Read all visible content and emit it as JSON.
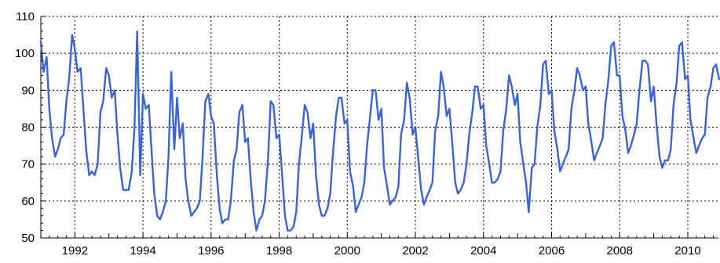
{
  "chart_data": {
    "type": "line",
    "title": "",
    "xlabel": "",
    "ylabel": "",
    "xlim": [
      1991.0,
      2010.9
    ],
    "ylim": [
      50,
      110
    ],
    "grid": true,
    "line_color": "#3a63d8",
    "x_ticks": [
      "1992",
      "1994",
      "1996",
      "1998",
      "2000",
      "2002",
      "2004",
      "2006",
      "2008",
      "2010"
    ],
    "y_ticks": [
      "50",
      "60",
      "70",
      "80",
      "90",
      "100",
      "110"
    ],
    "series": [
      {
        "x": [
          1991.0,
          1991.08,
          1991.17,
          1991.25,
          1991.33,
          1991.42,
          1991.5,
          1991.58,
          1991.67,
          1991.75,
          1991.83,
          1991.92,
          1992.0,
          1992.08,
          1992.17,
          1992.25,
          1992.33,
          1992.42,
          1992.5,
          1992.58,
          1992.67,
          1992.75,
          1992.83,
          1992.92,
          1993.0,
          1993.08,
          1993.17,
          1993.25,
          1993.33,
          1993.42,
          1993.5,
          1993.58,
          1993.67,
          1993.75,
          1993.83,
          1993.92,
          1994.0,
          1994.08,
          1994.17,
          1994.25,
          1994.33,
          1994.42,
          1994.5,
          1994.58,
          1994.67,
          1994.75,
          1994.83,
          1994.92,
          1995.0,
          1995.08,
          1995.17,
          1995.25,
          1995.33,
          1995.42,
          1995.5,
          1995.58,
          1995.67,
          1995.75,
          1995.83,
          1995.92,
          1996.0,
          1996.08,
          1996.17,
          1996.25,
          1996.33,
          1996.42,
          1996.5,
          1996.58,
          1996.67,
          1996.75,
          1996.83,
          1996.92,
          1997.0,
          1997.08,
          1997.17,
          1997.25,
          1997.33,
          1997.42,
          1997.5,
          1997.58,
          1997.67,
          1997.75,
          1997.83,
          1997.92,
          1998.0,
          1998.08,
          1998.17,
          1998.25,
          1998.33,
          1998.42,
          1998.5,
          1998.58,
          1998.67,
          1998.75,
          1998.83,
          1998.92,
          1999.0,
          1999.08,
          1999.17,
          1999.25,
          1999.33,
          1999.42,
          1999.5,
          1999.58,
          1999.67,
          1999.75,
          1999.83,
          1999.92,
          2000.0,
          2000.08,
          2000.17,
          2000.25,
          2000.33,
          2000.42,
          2000.5,
          2000.58,
          2000.67,
          2000.75,
          2000.83,
          2000.92,
          2001.0,
          2001.08,
          2001.17,
          2001.25,
          2001.33,
          2001.42,
          2001.5,
          2001.58,
          2001.67,
          2001.75,
          2001.83,
          2001.92,
          2002.0,
          2002.08,
          2002.17,
          2002.25,
          2002.33,
          2002.42,
          2002.5,
          2002.58,
          2002.67,
          2002.75,
          2002.83,
          2002.92,
          2003.0,
          2003.08,
          2003.17,
          2003.25,
          2003.33,
          2003.42,
          2003.5,
          2003.58,
          2003.67,
          2003.75,
          2003.83,
          2003.92,
          2004.0,
          2004.08,
          2004.17,
          2004.25,
          2004.33,
          2004.42,
          2004.5,
          2004.58,
          2004.67,
          2004.75,
          2004.83,
          2004.92,
          2005.0,
          2005.08,
          2005.17,
          2005.25,
          2005.33,
          2005.42,
          2005.5,
          2005.58,
          2005.67,
          2005.75,
          2005.83,
          2005.92,
          2006.0,
          2006.08,
          2006.17,
          2006.25,
          2006.33,
          2006.42,
          2006.5,
          2006.58,
          2006.67,
          2006.75,
          2006.83,
          2006.92,
          2007.0,
          2007.08,
          2007.17,
          2007.25,
          2007.33,
          2007.42,
          2007.5,
          2007.58,
          2007.67,
          2007.75,
          2007.83,
          2007.92,
          2008.0,
          2008.08,
          2008.17,
          2008.25,
          2008.33,
          2008.42,
          2008.5,
          2008.58,
          2008.67,
          2008.75,
          2008.83,
          2008.92,
          2009.0,
          2009.08,
          2009.17,
          2009.25,
          2009.33,
          2009.42,
          2009.5,
          2009.58,
          2009.67,
          2009.75,
          2009.83,
          2009.92,
          2010.0,
          2010.08,
          2010.17,
          2010.25,
          2010.33,
          2010.42,
          2010.5,
          2010.58,
          2010.67,
          2010.75,
          2010.83,
          2010.92
        ],
        "values": [
          103,
          95,
          99,
          85,
          77,
          72,
          74,
          77,
          78,
          87,
          93,
          105,
          101,
          95,
          96,
          85,
          74,
          67,
          68,
          67,
          70,
          84,
          87,
          96,
          94,
          88,
          90,
          78,
          69,
          63,
          63,
          63,
          68,
          80,
          106,
          67,
          89,
          85,
          86,
          74,
          62,
          56,
          55,
          57,
          60,
          72,
          95,
          74,
          88,
          77,
          81,
          66,
          60,
          56,
          57,
          58,
          60,
          72,
          87,
          89,
          83,
          81,
          67,
          58,
          54,
          55,
          55,
          60,
          71,
          74,
          84,
          86,
          76,
          77,
          65,
          57,
          52,
          55,
          56,
          60,
          71,
          87,
          86,
          77,
          78,
          68,
          56,
          52,
          52,
          53,
          57,
          70,
          78,
          86,
          84,
          77,
          81,
          67,
          59,
          56,
          56,
          58,
          62,
          73,
          83,
          88,
          88,
          81,
          82,
          68,
          64,
          57,
          59,
          61,
          65,
          75,
          83,
          90,
          90,
          82,
          85,
          69,
          64,
          59,
          60,
          61,
          64,
          78,
          82,
          92,
          88,
          78,
          80,
          72,
          63,
          59,
          61,
          63,
          65,
          79,
          83,
          95,
          91,
          83,
          85,
          76,
          65,
          62,
          63,
          65,
          70,
          78,
          84,
          91,
          91,
          85,
          86,
          75,
          70,
          65,
          65,
          66,
          68,
          79,
          85,
          94,
          91,
          86,
          89,
          76,
          70,
          65,
          57,
          69,
          70,
          80,
          86,
          97,
          98,
          89,
          90,
          79,
          74,
          68,
          70,
          72,
          74,
          85,
          90,
          96,
          94,
          90,
          91,
          81,
          76,
          71,
          73,
          75,
          77,
          86,
          93,
          102,
          103,
          94,
          94,
          83,
          79,
          73,
          75,
          78,
          81,
          90,
          98,
          98,
          97,
          87,
          91,
          81,
          72,
          69,
          71,
          71,
          74,
          86,
          92,
          102,
          103,
          93,
          94,
          82,
          77,
          73,
          75,
          77,
          78,
          88,
          91,
          96,
          97,
          93
        ]
      }
    ]
  }
}
